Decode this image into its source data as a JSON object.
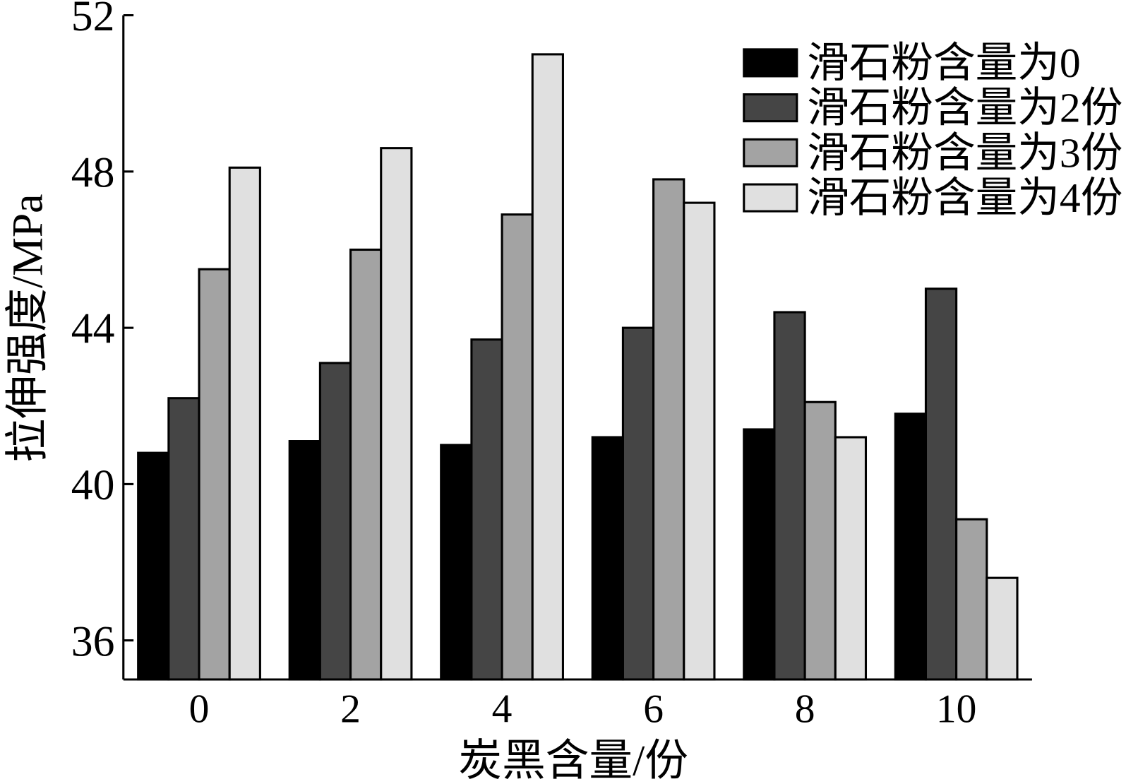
{
  "chart_data": {
    "type": "bar",
    "categories": [
      "0",
      "2",
      "4",
      "6",
      "8",
      "10"
    ],
    "series": [
      {
        "name": "滑石粉含量为0",
        "color": "#000000",
        "values": [
          40.8,
          41.1,
          41.0,
          41.2,
          41.4,
          41.8
        ]
      },
      {
        "name": "滑石粉含量为2份",
        "color": "#454545",
        "values": [
          42.2,
          43.1,
          43.7,
          44.0,
          44.4,
          45.0
        ]
      },
      {
        "name": "滑石粉含量为3份",
        "color": "#a3a3a3",
        "values": [
          45.5,
          46.0,
          46.9,
          47.8,
          42.1,
          39.1
        ]
      },
      {
        "name": "滑石粉含量为4份",
        "color": "#e0e0e0",
        "values": [
          48.1,
          48.6,
          51.0,
          47.2,
          41.2,
          37.6
        ]
      }
    ],
    "xlabel": "炭黑含量/份",
    "ylabel": "拉伸强度/MPa",
    "ylim": [
      35,
      52
    ],
    "yticks": [
      "36",
      "40",
      "44",
      "48",
      "52"
    ],
    "grid": false,
    "legend": "top-right"
  }
}
